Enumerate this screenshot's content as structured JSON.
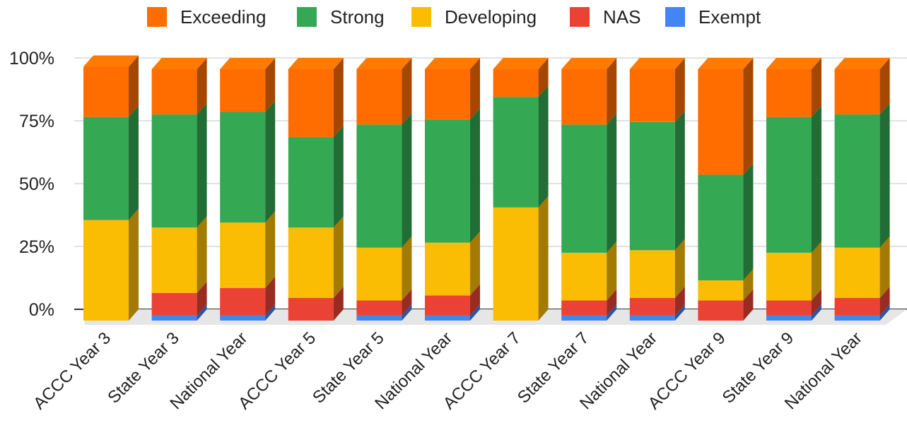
{
  "chart_data": {
    "type": "bar",
    "stacked": true,
    "normalized_percent": true,
    "style": "3d",
    "legend_position": "top",
    "grid": true,
    "categories": [
      "ACCC Year 3",
      "State Year 3",
      "National Year",
      "ACCC Year 5",
      "State Year 5",
      "National Year",
      "ACCC Year 7",
      "State Year 7",
      "National Year",
      "ACCC Year 9",
      "State Year 9",
      "National Year"
    ],
    "series": [
      {
        "name": "Exempt",
        "color": "#4285F4",
        "values": [
          0,
          2,
          2,
          0,
          2,
          2,
          0,
          2,
          2,
          0,
          2,
          2
        ]
      },
      {
        "name": "NAS",
        "color": "#EA4335",
        "values": [
          0,
          9,
          11,
          9,
          6,
          8,
          0,
          6,
          7,
          8,
          6,
          7
        ]
      },
      {
        "name": "Developing",
        "color": "#FBBC04",
        "values": [
          40,
          26,
          26,
          28,
          21,
          21,
          45,
          19,
          19,
          8,
          19,
          20
        ]
      },
      {
        "name": "Strong",
        "color": "#34A853",
        "values": [
          41,
          45,
          44,
          36,
          49,
          49,
          44,
          51,
          51,
          42,
          54,
          53
        ]
      },
      {
        "name": "Exceeding",
        "color": "#FF6D01",
        "values": [
          20,
          18,
          17,
          27,
          22,
          20,
          11,
          22,
          21,
          42,
          19,
          18
        ]
      }
    ],
    "legend_order": [
      "Exceeding",
      "Strong",
      "Developing",
      "NAS",
      "Exempt"
    ],
    "y_ticks": [
      "0%",
      "25%",
      "50%",
      "75%",
      "100%"
    ],
    "ylim": [
      0,
      100
    ]
  }
}
